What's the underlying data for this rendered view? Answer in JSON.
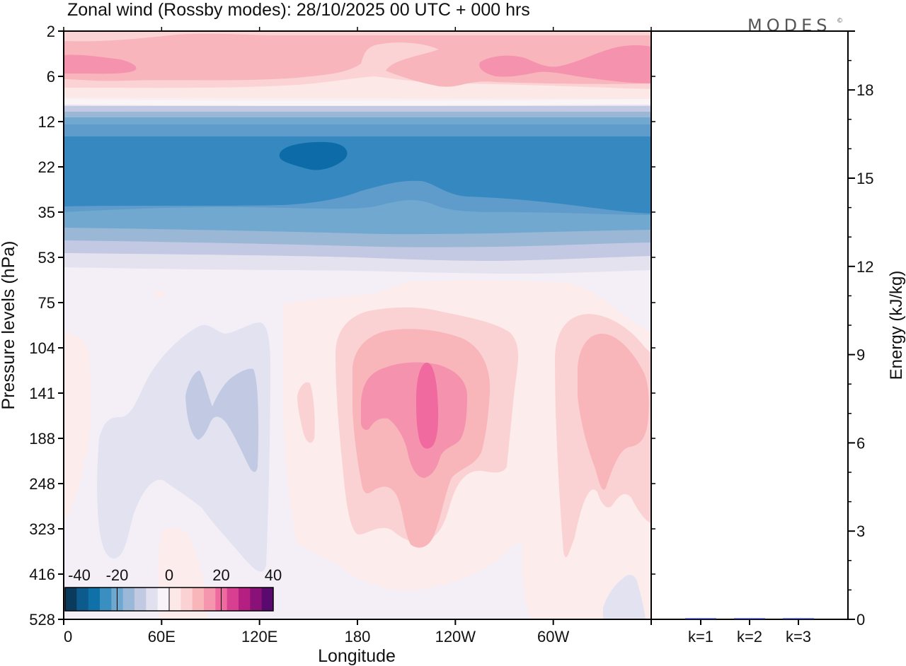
{
  "chart_data": [
    {
      "type": "heatmap",
      "title": "Zonal wind (Rossby modes):  28/10/2025  00 UTC  + 000 hrs",
      "xlabel": "Longitude",
      "ylabel": "Pressure levels (hPa)",
      "x_tick_labels": [
        "0",
        "60E",
        "120E",
        "180",
        "120W",
        "60W"
      ],
      "y_tick_labels": [
        "2",
        "6",
        "12",
        "22",
        "35",
        "53",
        "75",
        "104",
        "141",
        "188",
        "248",
        "323",
        "416",
        "528"
      ],
      "y_scale": "log (pressure, increasing downward)",
      "colorbar": {
        "tick_labels": [
          "-40",
          "-20",
          "0",
          "20",
          "40"
        ],
        "range": [
          -40,
          40
        ],
        "colors": [
          "#0a3a5c",
          "#0d5a8c",
          "#1071a8",
          "#3a8ec0",
          "#6fa8cf",
          "#9ab8d8",
          "#c2c9e3",
          "#e0e0ef",
          "#f7f3f8",
          "#fde8e8",
          "#fbd2d3",
          "#f8b6bb",
          "#f595ae",
          "#ef6a9e",
          "#d83f91",
          "#b51f82",
          "#8a1178",
          "#5a0a6e"
        ],
        "location": "bottom-left"
      },
      "fields": [
        {
          "band": "2-8 hPa",
          "value_range": [
            5,
            20
          ]
        },
        {
          "band": "9-11 hPa",
          "value_range": [
            -5,
            5
          ]
        },
        {
          "band": "12-45 hPa",
          "value_range": [
            -35,
            -10
          ],
          "min_near": "150E, 20 hPa",
          "min_value": -35
        },
        {
          "band": "45-70 hPa",
          "value_range": [
            -10,
            0
          ]
        },
        {
          "band": "90-430 hPa",
          "positive_max_near": "150W, 150 hPa",
          "positive_max_value": 25,
          "negative_region": "60E-120E",
          "negative_min_value": -10
        }
      ]
    },
    {
      "type": "bar",
      "categories": [
        "k=1",
        "k=2",
        "k=3"
      ],
      "values": [
        0.03,
        0.03,
        0.01
      ],
      "ylabel": "Energy (kJ/kg)",
      "y_tick_labels": [
        "0",
        "3",
        "6",
        "9",
        "12",
        "15",
        "18"
      ],
      "ylim": [
        0,
        20
      ]
    }
  ],
  "logo": {
    "text": "MODES",
    "mark": "©"
  }
}
